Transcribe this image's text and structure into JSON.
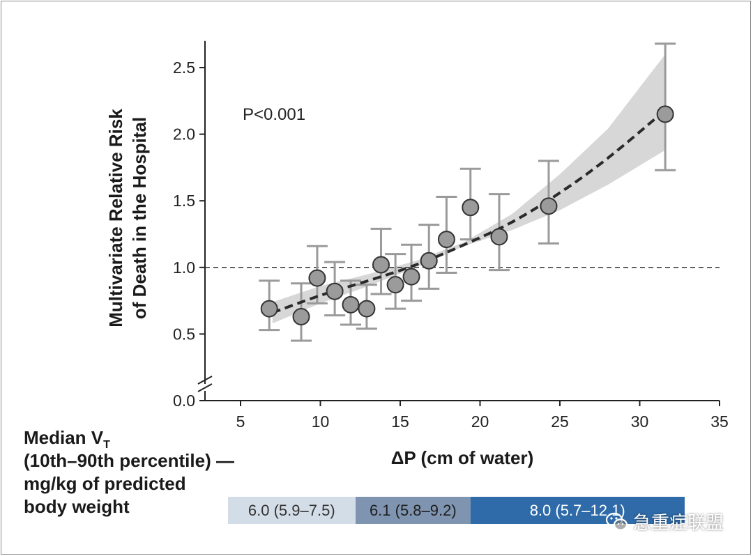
{
  "chart_data": {
    "type": "scatter",
    "title": "",
    "xlabel": "ΔP (cm of water)",
    "ylabel_lines": [
      "Multivariate Relative Risk",
      "of Death in the Hospital"
    ],
    "annotation": "P<0.001",
    "xlim": [
      3,
      35
    ],
    "ylim": [
      0.0,
      2.7
    ],
    "y_axis_break": true,
    "x_ticks": [
      5,
      10,
      15,
      20,
      25,
      30,
      35
    ],
    "y_ticks": [
      "0.0",
      "0.5",
      "1.0",
      "1.5",
      "2.0",
      "2.5"
    ],
    "reference_line_y": 1.0,
    "points": [
      {
        "x": 6.8,
        "y": 0.69,
        "lo": 0.53,
        "hi": 0.9
      },
      {
        "x": 8.8,
        "y": 0.63,
        "lo": 0.45,
        "hi": 0.88
      },
      {
        "x": 9.8,
        "y": 0.92,
        "lo": 0.73,
        "hi": 1.16
      },
      {
        "x": 10.9,
        "y": 0.82,
        "lo": 0.64,
        "hi": 1.04
      },
      {
        "x": 11.9,
        "y": 0.72,
        "lo": 0.57,
        "hi": 0.9
      },
      {
        "x": 12.9,
        "y": 0.69,
        "lo": 0.54,
        "hi": 0.87
      },
      {
        "x": 13.8,
        "y": 1.02,
        "lo": 0.8,
        "hi": 1.29
      },
      {
        "x": 14.7,
        "y": 0.87,
        "lo": 0.69,
        "hi": 1.1
      },
      {
        "x": 15.7,
        "y": 0.93,
        "lo": 0.75,
        "hi": 1.17
      },
      {
        "x": 16.8,
        "y": 1.05,
        "lo": 0.84,
        "hi": 1.32
      },
      {
        "x": 17.9,
        "y": 1.21,
        "lo": 0.96,
        "hi": 1.53
      },
      {
        "x": 19.4,
        "y": 1.45,
        "lo": 1.21,
        "hi": 1.74
      },
      {
        "x": 21.2,
        "y": 1.23,
        "lo": 0.98,
        "hi": 1.55
      },
      {
        "x": 24.3,
        "y": 1.46,
        "lo": 1.18,
        "hi": 1.8
      },
      {
        "x": 31.6,
        "y": 2.15,
        "lo": 1.73,
        "hi": 2.68
      }
    ],
    "trend": {
      "style": "dashed",
      "x": [
        7.0,
        10.0,
        13.0,
        16.0,
        19.0,
        22.0,
        25.0,
        28.0,
        31.6
      ],
      "y": [
        0.66,
        0.79,
        0.9,
        1.02,
        1.17,
        1.34,
        1.56,
        1.82,
        2.18
      ],
      "band_lo": [
        0.58,
        0.73,
        0.86,
        1.0,
        1.16,
        1.28,
        1.43,
        1.62,
        1.88
      ],
      "band_hi": [
        0.74,
        0.86,
        0.95,
        1.05,
        1.19,
        1.4,
        1.7,
        2.04,
        2.6
      ]
    },
    "vt_bands": [
      {
        "x_start": 4.2,
        "x_end": 12.2,
        "label": "6.0 (5.9–7.5)",
        "color": "#d3dde8",
        "text_color": "#333333"
      },
      {
        "x_start": 12.2,
        "x_end": 19.4,
        "label": "6.1 (5.8–9.2)",
        "color": "#7e94b0",
        "text_color": "#1e1e1e"
      },
      {
        "x_start": 19.4,
        "x_end": 32.8,
        "label": "8.0 (5.7–12.1)",
        "color": "#2e6ba8",
        "text_color": "#ffffff"
      }
    ],
    "colors": {
      "point_fill": "#9b9b9b",
      "error_bar": "#9a9a9a",
      "ci_band": "#d7d7d7",
      "axis": "#222222"
    }
  },
  "vt_label": {
    "line1_main": "Median V",
    "line1_sub": "T",
    "line2": "(10th–90th percentile) —",
    "line3": "mg/kg of predicted",
    "line4": "body weight"
  },
  "watermark": {
    "text": "急重症联盟",
    "icon": "wechat-icon"
  }
}
